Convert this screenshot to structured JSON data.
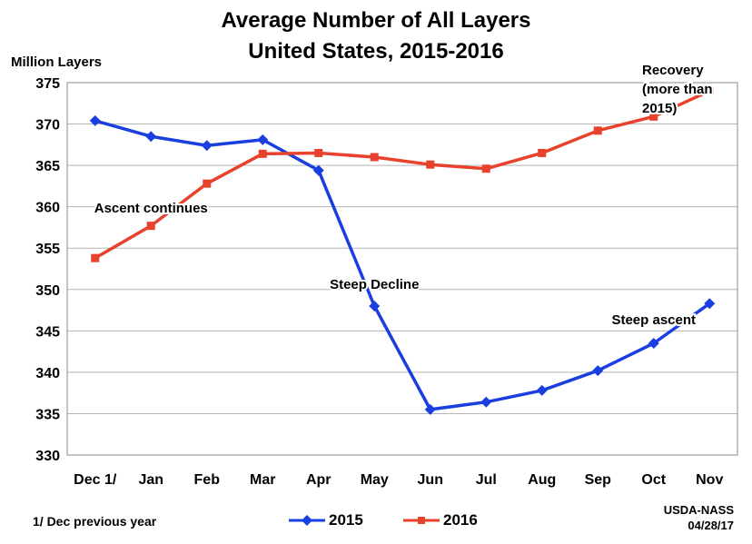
{
  "chart_data": {
    "type": "line",
    "title": [
      "Average Number of All Layers",
      "United States, 2015-2016"
    ],
    "ylabel": "Million Layers",
    "xlabel": "",
    "categories": [
      "Dec 1/",
      "Jan",
      "Feb",
      "Mar",
      "Apr",
      "May",
      "Jun",
      "Jul",
      "Aug",
      "Sep",
      "Oct",
      "Nov"
    ],
    "ylim": [
      330,
      375
    ],
    "yticks": [
      330,
      335,
      340,
      345,
      350,
      355,
      360,
      365,
      370,
      375
    ],
    "grid": true,
    "legend_position": "bottom",
    "series": [
      {
        "name": "2015",
        "color": "#1a3fe0",
        "marker": "diamond",
        "values": [
          370.4,
          368.5,
          367.4,
          368.1,
          364.4,
          348.0,
          335.5,
          336.4,
          337.8,
          340.2,
          343.5,
          348.3
        ]
      },
      {
        "name": "2016",
        "color": "#e8412c",
        "marker": "square",
        "values": [
          353.8,
          357.7,
          362.8,
          366.4,
          366.5,
          366.0,
          365.1,
          364.6,
          366.5,
          369.2,
          370.9,
          374.0
        ]
      }
    ],
    "annotations": [
      {
        "text": "Ascent continues",
        "category": "Jan",
        "value": 359.3
      },
      {
        "text": "Steep Decline",
        "category": "May",
        "value": 350.1
      },
      {
        "text": "Steep ascent",
        "category": "Oct",
        "value": 345.8
      },
      {
        "text": [
          "Recovery",
          "(more than",
          "2015)"
        ],
        "category": "Oct",
        "value": 374.3
      }
    ],
    "footnote": "1/ Dec  previous year",
    "source": [
      "USDA-NASS",
      "04/28/17"
    ]
  }
}
